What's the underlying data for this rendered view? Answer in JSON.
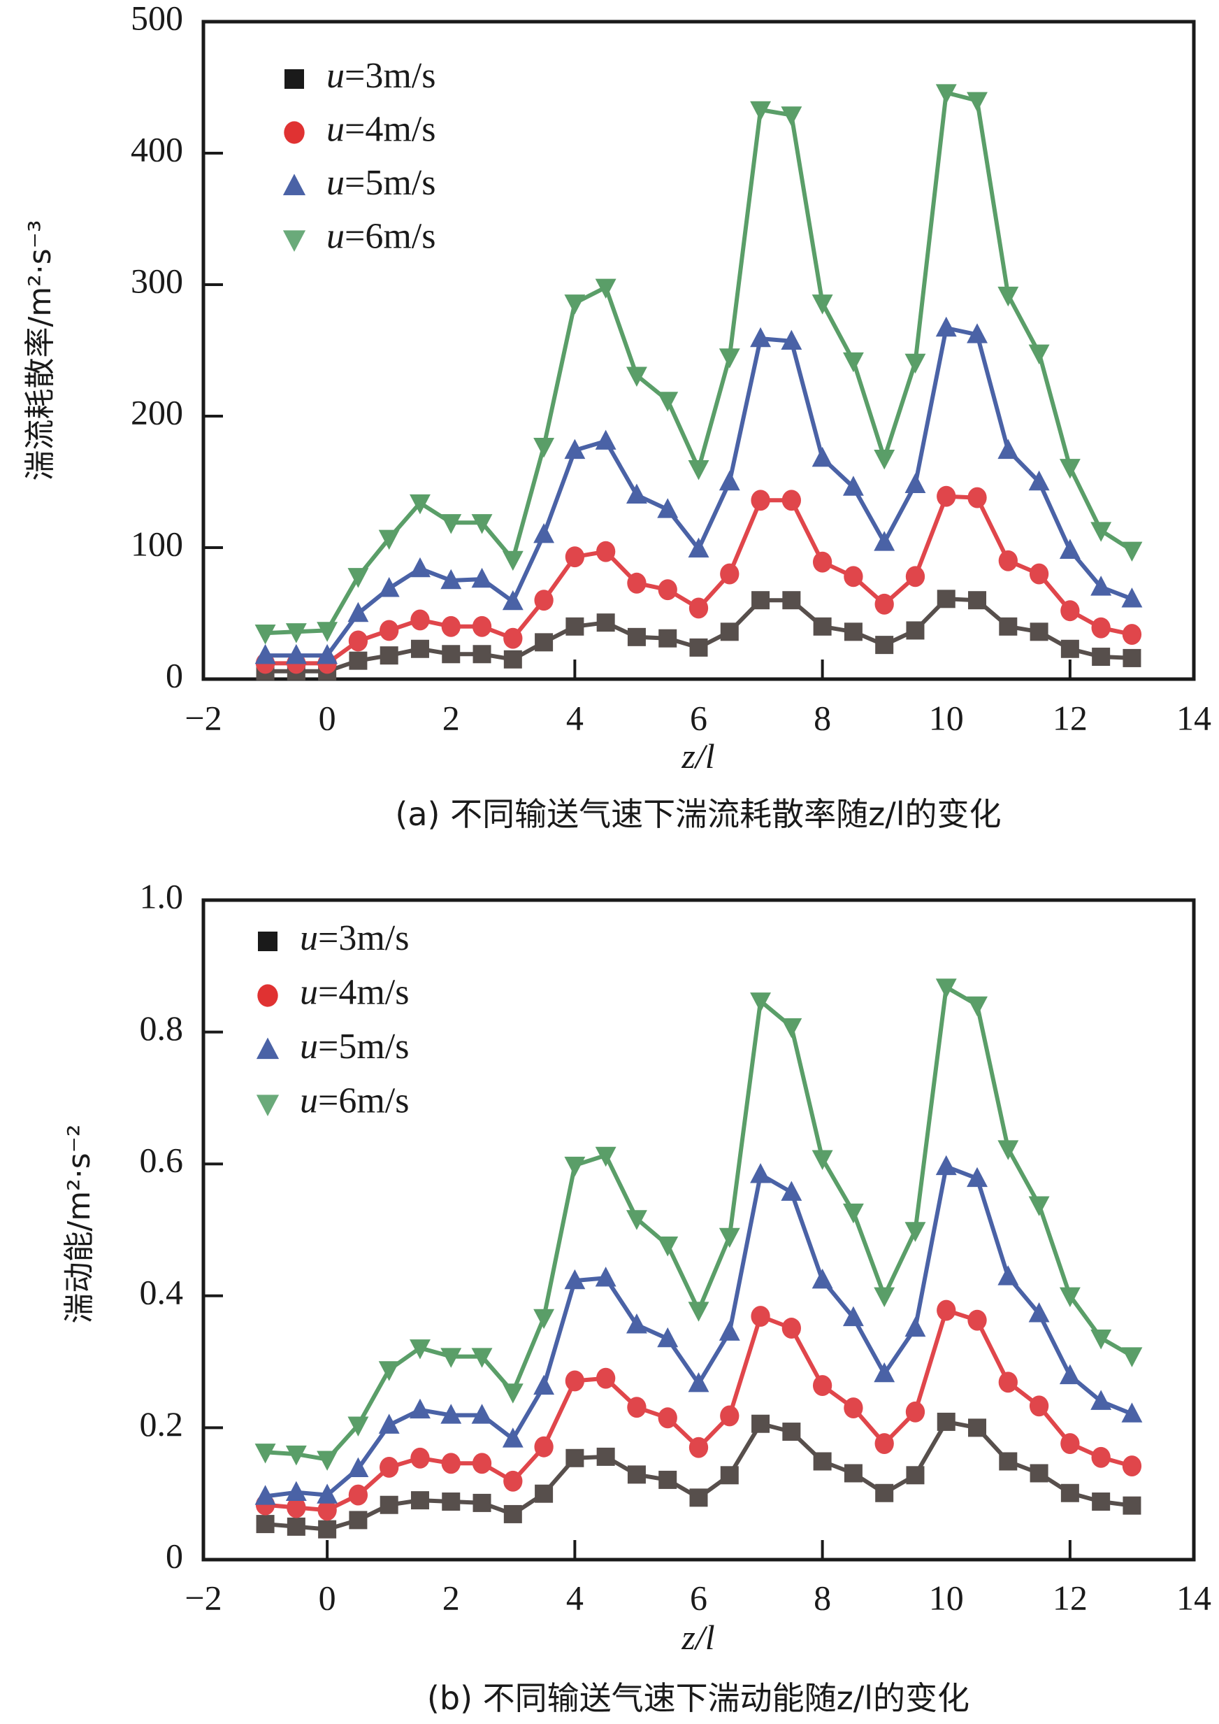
{
  "chart_data": [
    {
      "id": "a",
      "type": "line",
      "title": "",
      "caption": "(a) 不同输送气速下湍流耗散率随z/l的变化",
      "xlabel": "z/l",
      "ylabel": "湍流耗散率/m²·s⁻³",
      "xlim": [
        -2,
        14
      ],
      "ylim": [
        0,
        500
      ],
      "xticks": [
        -2,
        0,
        2,
        4,
        6,
        8,
        10,
        12,
        14
      ],
      "xtick_labels": [
        "−2",
        "0",
        "2",
        "4",
        "6",
        "8",
        "10",
        "12",
        "14"
      ],
      "xticks_major": [
        0,
        4,
        8,
        12
      ],
      "yticks": [
        0,
        100,
        200,
        300,
        400,
        500
      ],
      "ytick_labels": [
        "0",
        "100",
        "200",
        "300",
        "400",
        "500"
      ],
      "yticks_major": [
        100,
        200,
        300,
        400
      ],
      "grid": false,
      "legend_position": "top-left",
      "x": [
        -1,
        -0.5,
        0,
        0.5,
        1,
        1.5,
        2,
        2.5,
        3,
        3.5,
        4,
        4.5,
        5,
        5.5,
        6,
        6.5,
        7,
        7.5,
        8,
        8.5,
        9,
        9.5,
        10,
        10.5,
        11,
        11.5,
        12,
        12.5,
        13
      ],
      "series": [
        {
          "name": "u=3m/s",
          "legend_italic": "u",
          "legend_rest": "=3m/s",
          "marker": "square",
          "color": "#574f4c",
          "legend_color": "#1a1a1a",
          "values": [
            6,
            6,
            6,
            14,
            18,
            23,
            19,
            19,
            15,
            28,
            40,
            43,
            32,
            31,
            24,
            36,
            60,
            60,
            40,
            36,
            26,
            37,
            61,
            60,
            40,
            36,
            23,
            17,
            16
          ]
        },
        {
          "name": "u=4m/s",
          "legend_italic": "u",
          "legend_rest": "=4m/s",
          "marker": "circle",
          "color": "#e0464b",
          "legend_color": "#e03232",
          "values": [
            12,
            12,
            12,
            29,
            37,
            45,
            40,
            40,
            31,
            60,
            93,
            97,
            73,
            68,
            54,
            80,
            136,
            136,
            89,
            78,
            57,
            78,
            139,
            138,
            90,
            80,
            52,
            39,
            34
          ]
        },
        {
          "name": "u=5m/s",
          "legend_italic": "u",
          "legend_rest": "=5m/s",
          "marker": "triangle-up",
          "color": "#4a62a6",
          "legend_color": "#4a62a6",
          "values": [
            18,
            18,
            18,
            50,
            69,
            84,
            75,
            76,
            59,
            110,
            174,
            181,
            140,
            129,
            99,
            150,
            259,
            257,
            168,
            146,
            104,
            148,
            267,
            262,
            174,
            150,
            98,
            70,
            61
          ]
        },
        {
          "name": "u=6m/s",
          "legend_italic": "u",
          "legend_rest": "=6m/s",
          "marker": "triangle-down",
          "color": "#5a9e68",
          "legend_color": "#6aaa7a",
          "values": [
            35,
            36,
            37,
            78,
            107,
            134,
            119,
            119,
            91,
            177,
            286,
            298,
            231,
            212,
            160,
            245,
            433,
            429,
            286,
            242,
            168,
            241,
            446,
            440,
            292,
            248,
            161,
            113,
            98
          ]
        }
      ]
    },
    {
      "id": "b",
      "type": "line",
      "title": "",
      "caption": "(b) 不同输送气速下湍动能随z/l的变化",
      "xlabel": "z/l",
      "ylabel": "湍动能/m²·s⁻²",
      "xlim": [
        -2,
        14
      ],
      "ylim": [
        0,
        1.0
      ],
      "xticks": [
        -2,
        0,
        2,
        4,
        6,
        8,
        10,
        12,
        14
      ],
      "xtick_labels": [
        "−2",
        "0",
        "2",
        "4",
        "6",
        "8",
        "10",
        "12",
        "14"
      ],
      "xticks_major": [
        0,
        4,
        8,
        12
      ],
      "yticks": [
        0,
        0.2,
        0.4,
        0.6,
        0.8,
        1.0
      ],
      "ytick_labels": [
        "0",
        "0.2",
        "0.4",
        "0.6",
        "0.8",
        "1.0"
      ],
      "yticks_major": [
        0.2,
        0.4,
        0.6,
        0.8
      ],
      "grid": false,
      "legend_position": "top-left",
      "x": [
        -1,
        -0.5,
        0,
        0.5,
        1,
        1.5,
        2,
        2.5,
        3,
        3.5,
        4,
        4.5,
        5,
        5.5,
        6,
        6.5,
        7,
        7.5,
        8,
        8.5,
        9,
        9.5,
        10,
        10.5,
        11,
        11.5,
        12,
        12.5,
        13
      ],
      "series": [
        {
          "name": "u=3m/s",
          "legend_italic": "u",
          "legend_rest": "=3m/s",
          "marker": "square",
          "color": "#574f4c",
          "legend_color": "#1a1a1a",
          "values": [
            0.054,
            0.05,
            0.046,
            0.06,
            0.083,
            0.09,
            0.088,
            0.086,
            0.069,
            0.1,
            0.154,
            0.156,
            0.129,
            0.121,
            0.094,
            0.128,
            0.206,
            0.194,
            0.149,
            0.131,
            0.101,
            0.128,
            0.209,
            0.2,
            0.149,
            0.131,
            0.101,
            0.088,
            0.082
          ]
        },
        {
          "name": "u=4m/s",
          "legend_italic": "u",
          "legend_rest": "=4m/s",
          "marker": "circle",
          "color": "#e0464b",
          "legend_color": "#e03232",
          "values": [
            0.083,
            0.079,
            0.075,
            0.098,
            0.14,
            0.154,
            0.146,
            0.146,
            0.119,
            0.171,
            0.271,
            0.275,
            0.231,
            0.215,
            0.17,
            0.218,
            0.369,
            0.351,
            0.264,
            0.23,
            0.176,
            0.224,
            0.378,
            0.363,
            0.269,
            0.233,
            0.176,
            0.155,
            0.142
          ]
        },
        {
          "name": "u=5m/s",
          "legend_italic": "u",
          "legend_rest": "=5m/s",
          "marker": "triangle-up",
          "color": "#4a62a6",
          "legend_color": "#4a62a6",
          "values": [
            0.096,
            0.102,
            0.098,
            0.138,
            0.204,
            0.227,
            0.219,
            0.219,
            0.183,
            0.263,
            0.423,
            0.427,
            0.356,
            0.335,
            0.267,
            0.345,
            0.584,
            0.557,
            0.424,
            0.367,
            0.282,
            0.351,
            0.596,
            0.578,
            0.429,
            0.373,
            0.279,
            0.24,
            0.221
          ]
        },
        {
          "name": "u=6m/s",
          "legend_italic": "u",
          "legend_rest": "=6m/s",
          "marker": "triangle-down",
          "color": "#5a9e68",
          "legend_color": "#6aaa7a",
          "values": [
            0.163,
            0.16,
            0.152,
            0.204,
            0.288,
            0.321,
            0.308,
            0.308,
            0.254,
            0.367,
            0.598,
            0.613,
            0.517,
            0.477,
            0.378,
            0.49,
            0.847,
            0.808,
            0.608,
            0.527,
            0.4,
            0.499,
            0.868,
            0.841,
            0.623,
            0.538,
            0.4,
            0.336,
            0.309
          ]
        }
      ]
    }
  ]
}
